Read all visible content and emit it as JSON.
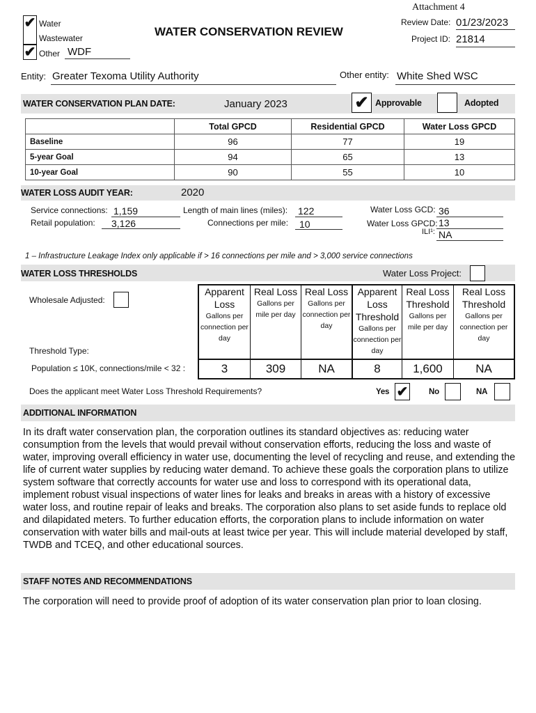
{
  "header": {
    "attachment": "Attachment 4",
    "title": "WATER CONSERVATION REVIEW",
    "review_date_label": "Review Date:",
    "review_date": "01/23/2023",
    "project_id_label": "Project ID:",
    "project_id": "21814"
  },
  "types": [
    {
      "label": "Water",
      "checked": true
    },
    {
      "label": "Wastewater",
      "checked": false
    },
    {
      "label": "Other",
      "checked": true
    }
  ],
  "other_value": "WDF",
  "check_mark": "✔",
  "entity": {
    "label": "Entity:",
    "value": "Greater Texoma Utility Authority",
    "other_label": "Other entity:",
    "other_value": "White Shed WSC"
  },
  "plan": {
    "label": "WATER CONSERVATION PLAN DATE:",
    "date": "January 2023",
    "approvable_label": "Approvable",
    "approvable": true,
    "adopted_label": "Adopted",
    "adopted": false
  },
  "gpcd_table": {
    "headers": [
      "",
      "Total GPCD",
      "Residential GPCD",
      "Water Loss GPCD"
    ],
    "rows": [
      [
        "Baseline",
        "96",
        "77",
        "19"
      ],
      [
        "5-year Goal",
        "94",
        "65",
        "13"
      ],
      [
        "10-year Goal",
        "90",
        "55",
        "10"
      ]
    ]
  },
  "audit": {
    "label": "WATER LOSS AUDIT YEAR:",
    "year": "2020",
    "service_connections_label": "Service connections:",
    "service_connections": "1,159",
    "retail_population_label": "Retail population:",
    "retail_population": "3,126",
    "main_lines_label": "Length of main lines (miles):",
    "main_lines": "122",
    "connections_per_mile_label": "Connections per mile:",
    "connections_per_mile": "10",
    "gcd_label": "Water Loss GCD:",
    "gcd": "36",
    "gpcd_label": "Water Loss GPCD:",
    "gpcd": "13",
    "ili_label": "ILI¹:",
    "ili": "NA"
  },
  "footnote": "1 – Infrastructure Leakage Index only applicable if > 16 connections per mile and > 3,000 service connections",
  "thresholds": {
    "label": "WATER LOSS THRESHOLDS",
    "project_label": "Water Loss Project:",
    "project_checked": false,
    "wholesale_label": "Wholesale Adjusted:",
    "wholesale_checked": false,
    "type_label": "Threshold Type:",
    "row_label": "Population ≤ 10K, connections/mile < 32 :",
    "columns": [
      {
        "title": "Apparent Loss",
        "sub": "Gallons per connection per day"
      },
      {
        "title": "Real Loss",
        "sub": "Gallons per mile per day"
      },
      {
        "title": "Real Loss",
        "sub": "Gallons per connection per day"
      },
      {
        "title": "Apparent Loss Threshold",
        "sub": "Gallons per connection per day"
      },
      {
        "title": "Real Loss Threshold",
        "sub": "Gallons per mile per day"
      },
      {
        "title": "Real Loss Threshold",
        "sub": "Gallons per connection per day"
      }
    ],
    "values": [
      "3",
      "309",
      "NA",
      "8",
      "1,600",
      "NA"
    ],
    "question": "Does the applicant meet Water Loss Threshold Requirements?",
    "yes_label": "Yes",
    "yes": true,
    "no_label": "No",
    "no": false,
    "na_label": "NA",
    "na": false
  },
  "additional": {
    "label": "ADDITIONAL INFORMATION",
    "text": "In its draft water conservation plan, the corporation outlines its standard objectives as: reducing water consumption from the levels that would prevail without conservation efforts, reducing the loss and waste of water, improving overall efficiency in water use, documenting the level of recycling and reuse, and extending the life of current water supplies by reducing water demand. To achieve these goals the corporation plans to utilize system software that correctly accounts for water use and loss to correspond with its operational data, implement robust visual inspections of water lines for leaks and breaks in areas with a history of excessive water loss, and routine repair of leaks and breaks. The corporation also plans to set aside funds to replace old and dilapidated meters. To further education efforts, the corporation plans to include information on water conservation with water bills and mail-outs at least twice per year. This will include material developed by staff, TWDB and TCEQ, and other educational sources."
  },
  "staff": {
    "label": "STAFF NOTES AND RECOMMENDATIONS",
    "text": "The corporation will need to provide proof of adoption of its water conservation plan prior to loan closing."
  }
}
